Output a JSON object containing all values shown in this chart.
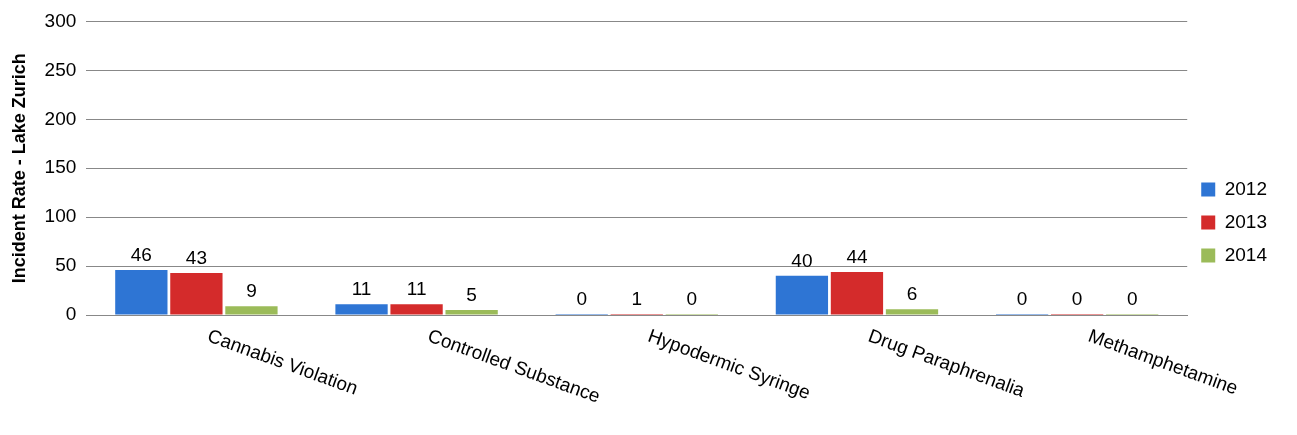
{
  "chart_data": {
    "type": "bar",
    "ylabel": "Incident Rate - Lake Zurich",
    "categories": [
      "Cannabis Violation",
      "Controlled Substance",
      "Hypodermic Syringe",
      "Drug Paraphrenalia",
      "Methamphetamine"
    ],
    "series": [
      {
        "name": "2012",
        "color": "#2e75d4",
        "values": [
          46,
          11,
          0,
          40,
          0
        ]
      },
      {
        "name": "2013",
        "color": "#d42b2b",
        "values": [
          43,
          11,
          1,
          44,
          0
        ]
      },
      {
        "name": "2014",
        "color": "#9bbb59",
        "values": [
          9,
          5,
          0,
          6,
          0
        ]
      }
    ],
    "ylim": [
      0,
      300
    ],
    "yticks": [
      0,
      50,
      100,
      150,
      200,
      250,
      300
    ],
    "grid": "y",
    "legend": "right",
    "data_labels": true
  }
}
